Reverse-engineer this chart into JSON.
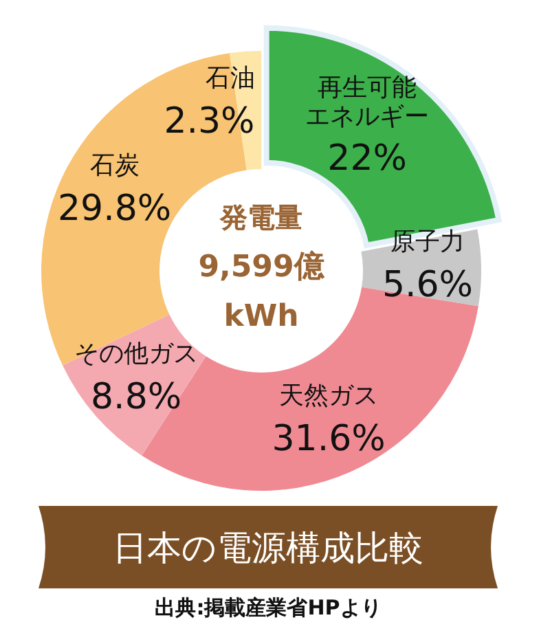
{
  "chart_data": {
    "type": "donut",
    "title": "日本の電源構成比較",
    "categories": [
      "再生可能エネルギー",
      "原子力",
      "天然ガス",
      "その他ガス",
      "石炭",
      "石油"
    ],
    "values": [
      22,
      5.6,
      31.6,
      8.8,
      29.8,
      2.3
    ],
    "value_labels": [
      "22%",
      "5.6%",
      "31.6%",
      "8.8%",
      "29.8%",
      "2.3%"
    ],
    "colors": [
      "#3cb04a",
      "#c8c8c8",
      "#ef8a93",
      "#f4a9b0",
      "#f8c372",
      "#fde6a8"
    ],
    "annotations": [
      "発電量",
      "9,599億",
      "kWh",
      "出典:掲載産業省HPより"
    ]
  }
}
